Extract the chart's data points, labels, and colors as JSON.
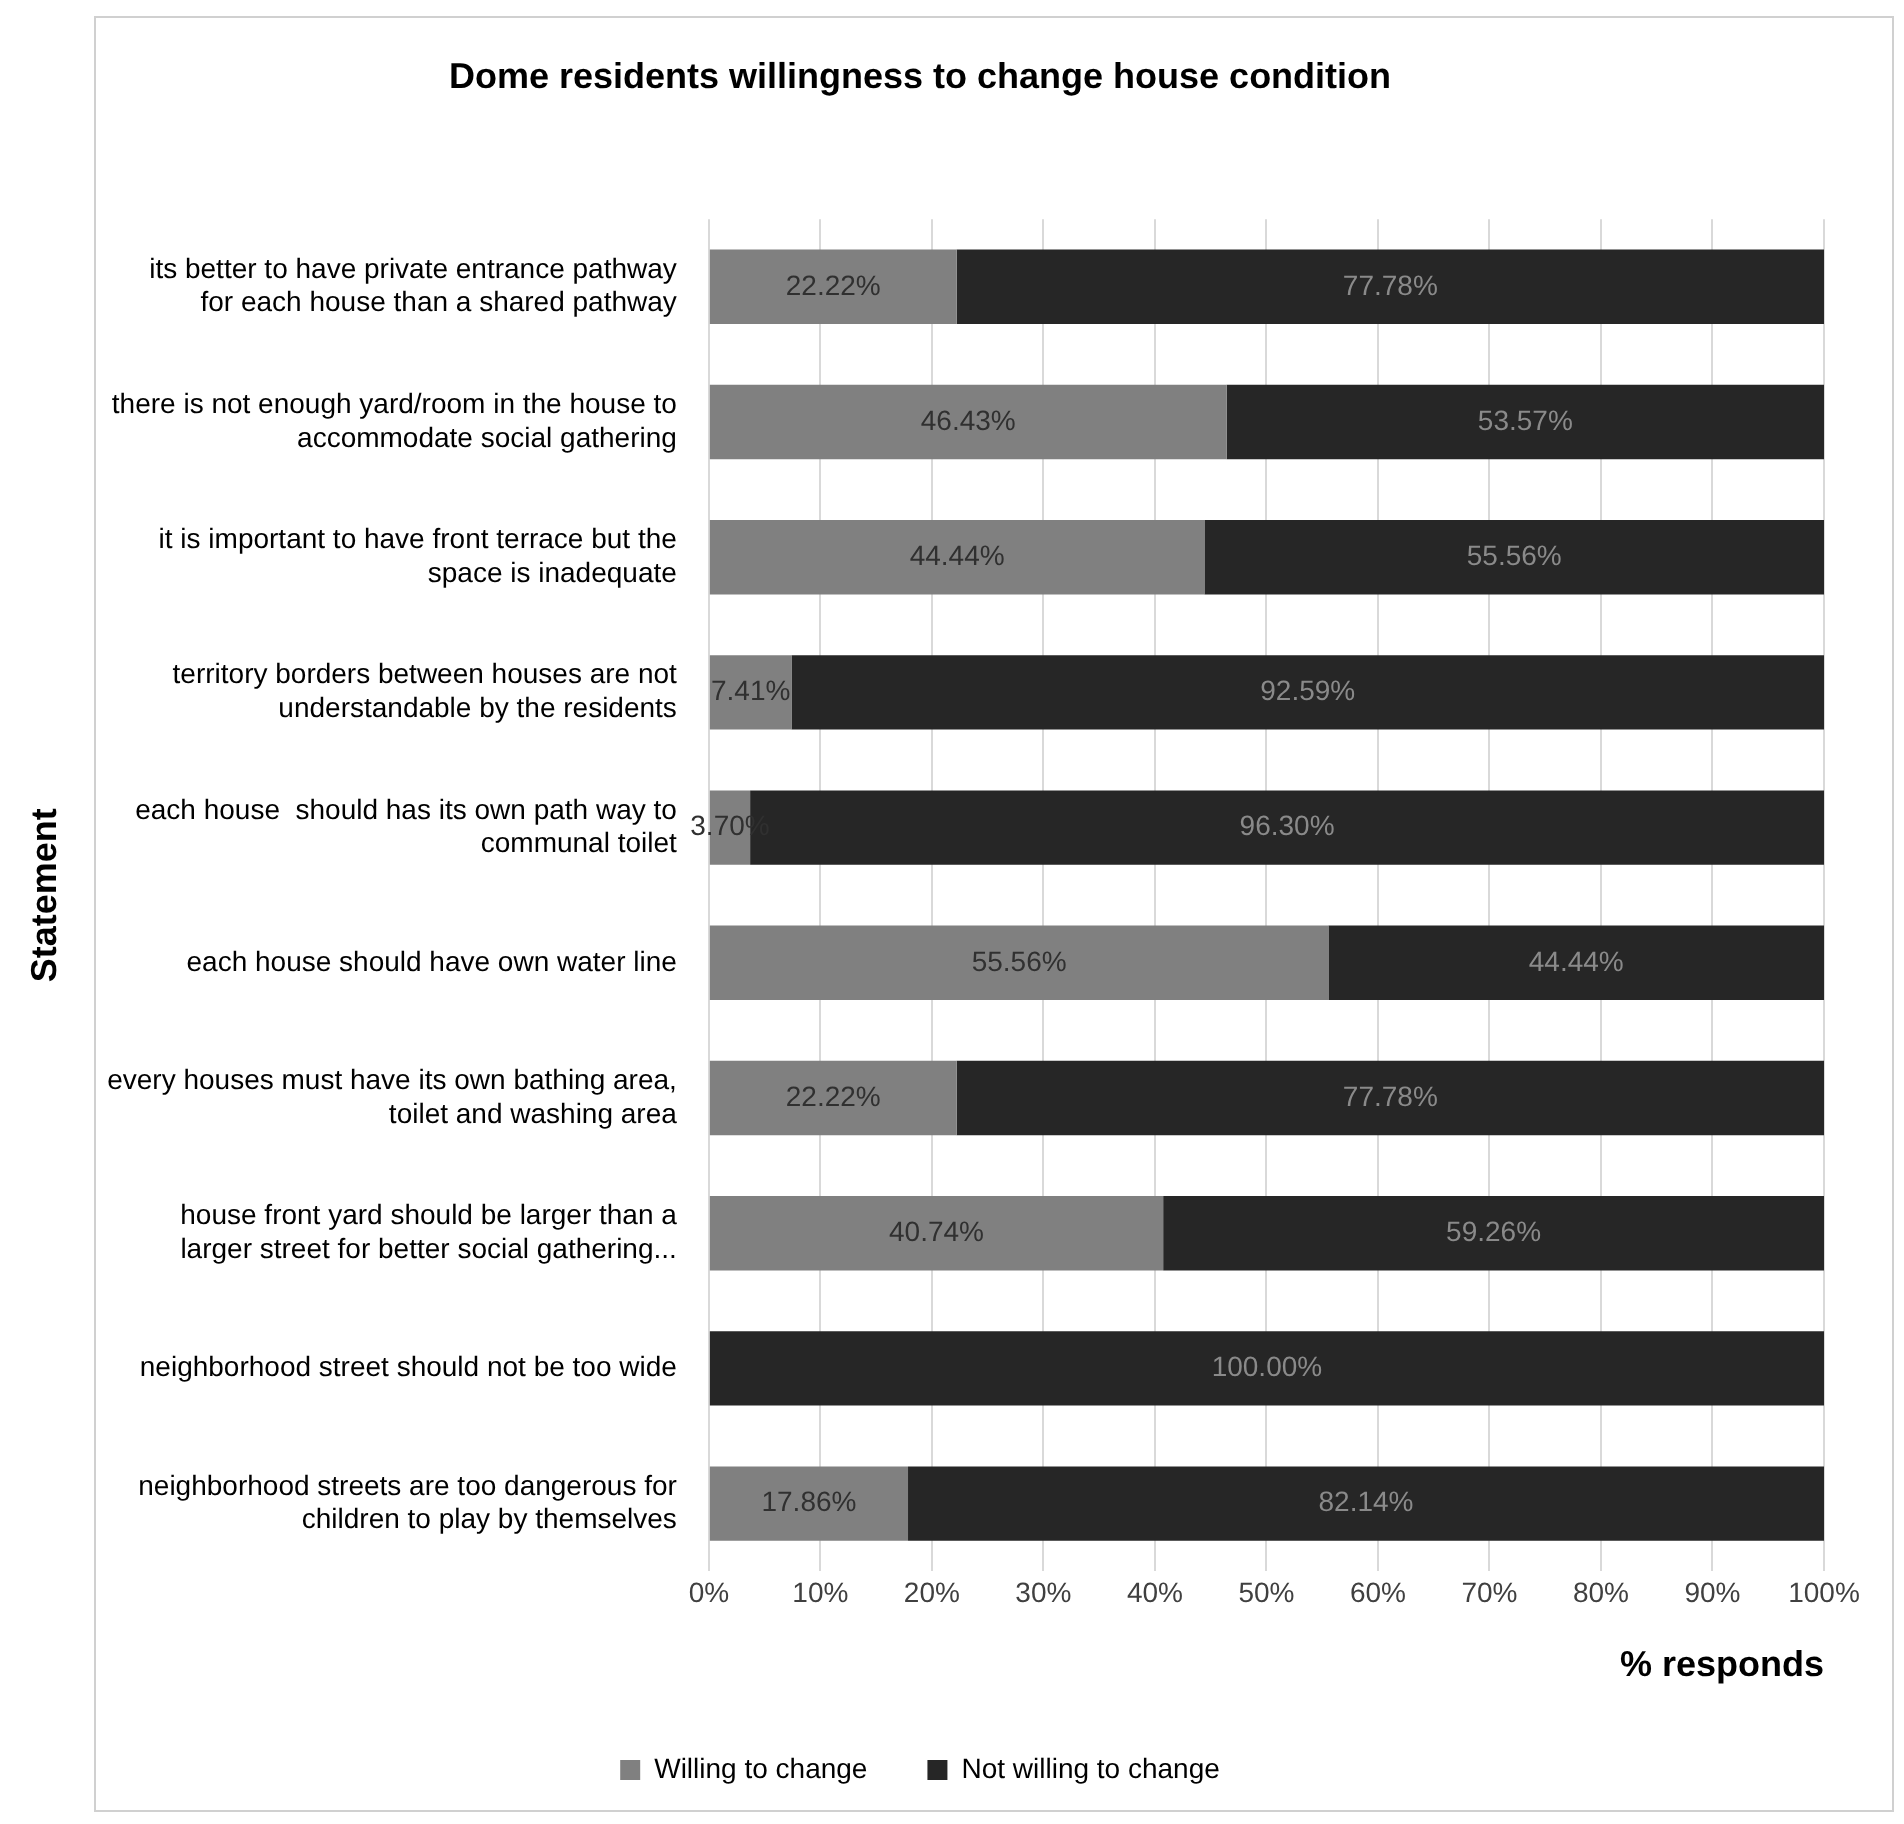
{
  "chart_data": {
    "type": "bar",
    "orientation": "horizontal",
    "stacked": true,
    "title": "Dome residents willingness to change house condition",
    "xlabel": "% responds",
    "ylabel": "Statement",
    "categories": [
      "its better to have private entrance pathway for each house than a shared pathway",
      "there is not enough yard/room in the house to accommodate social gathering",
      "it is important to have front terrace but the space is inadequate",
      "territory borders between houses are not understandable by the residents",
      "each house  should has its own path way to communal toilet",
      "each house should have own water line",
      "every houses must have its own bathing area, toilet and washing area",
      "house front yard should be larger than a larger street for better social gathering...",
      "neighborhood street should not be too wide",
      "neighborhood streets are too dangerous for children to play by themselves"
    ],
    "series": [
      {
        "name": "Willing to change",
        "color": "#808080",
        "values": [
          22.22,
          46.43,
          44.44,
          7.41,
          3.7,
          55.56,
          22.22,
          40.74,
          0,
          17.86
        ],
        "value_labels": [
          "22.22%",
          "46.43%",
          "44.44%",
          "7.41%",
          "3.70%",
          "55.56%",
          "22.22%",
          "40.74%",
          null,
          "17.86%"
        ]
      },
      {
        "name": "Not willing to change",
        "color": "#262626",
        "values": [
          77.78,
          53.57,
          55.56,
          92.59,
          96.3,
          44.44,
          77.78,
          59.26,
          100,
          82.14
        ],
        "value_labels": [
          "77.78%",
          "53.57%",
          "55.56%",
          "92.59%",
          "96.30%",
          "44.44%",
          "77.78%",
          "59.26%",
          "100.00%",
          "82.14%"
        ]
      }
    ],
    "xlim": [
      0,
      100
    ],
    "xticks": [
      {
        "value": 0,
        "label": "0%"
      },
      {
        "value": 10,
        "label": "10%"
      },
      {
        "value": 20,
        "label": "20%"
      },
      {
        "value": 30,
        "label": "30%"
      },
      {
        "value": 40,
        "label": "40%"
      },
      {
        "value": 50,
        "label": "50%"
      },
      {
        "value": 60,
        "label": "60%"
      },
      {
        "value": 70,
        "label": "70%"
      },
      {
        "value": 80,
        "label": "80%"
      },
      {
        "value": 90,
        "label": "90%"
      },
      {
        "value": 100,
        "label": "100%"
      }
    ],
    "grid": "x",
    "legend": "bottom"
  }
}
